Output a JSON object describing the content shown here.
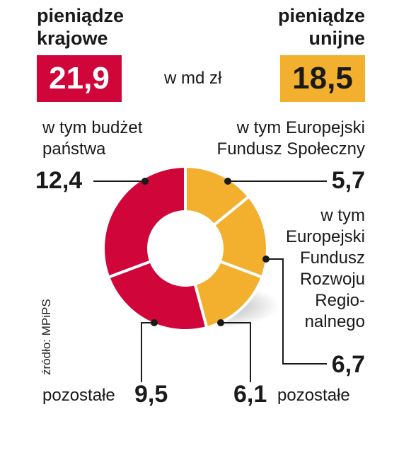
{
  "header": {
    "left_title": [
      "pieniądze",
      "krajowe"
    ],
    "right_title": [
      "pieniądze",
      "unijne"
    ],
    "unit": "w md zł",
    "left_total": "21,9",
    "right_total": "18,5"
  },
  "labels": {
    "budget": [
      "w tym budżet",
      "państwa"
    ],
    "efs": [
      "w tym Europejski",
      "Fundusz Społeczny"
    ],
    "efrr": [
      "w tym",
      "Europejski",
      "Fundusz",
      "Rozwoju",
      "Regio-",
      "nalnego"
    ],
    "other_left_text": "pozostałe",
    "other_right_text": "pozostałe"
  },
  "source": "źródło: MPiPS",
  "colors": {
    "red": "#D0063A",
    "orange": "#F2B02E",
    "text": "#1a1a1a"
  },
  "chart_data": {
    "type": "pie",
    "unit": "w md zł",
    "slices": [
      {
        "group": "pieniądze unijne",
        "label": "w tym Europejski Fundusz Społeczny",
        "value": 5.7,
        "value_label": "5,7",
        "color": "#F2B02E"
      },
      {
        "group": "pieniądze unijne",
        "label": "w tym Europejski Fundusz Rozwoju Regionalnego",
        "value": 6.7,
        "value_label": "6,7",
        "color": "#F2B02E"
      },
      {
        "group": "pieniądze unijne",
        "label": "pozostałe",
        "value": 6.1,
        "value_label": "6,1",
        "color": "#F2B02E"
      },
      {
        "group": "pieniądze krajowe",
        "label": "pozostałe",
        "value": 9.5,
        "value_label": "9,5",
        "color": "#D0063A"
      },
      {
        "group": "pieniądze krajowe",
        "label": "w tym budżet państwa",
        "value": 12.4,
        "value_label": "12,4",
        "color": "#D0063A"
      }
    ]
  }
}
